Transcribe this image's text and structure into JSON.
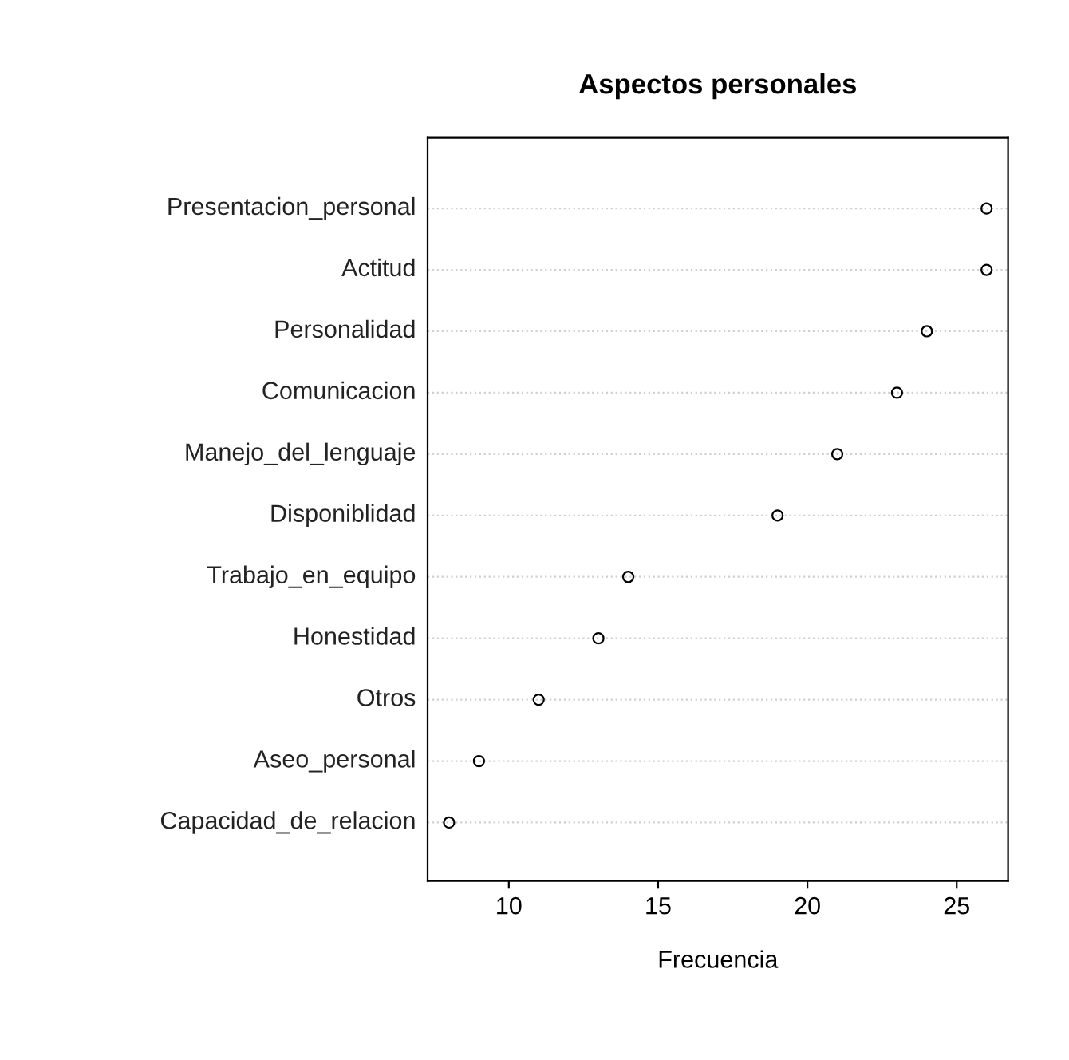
{
  "chart_data": {
    "type": "scatter",
    "orientation": "horizontal",
    "title": "Aspectos personales",
    "xlabel": "Frecuencia",
    "categories": [
      "Presentacion_personal",
      "Actitud",
      "Personalidad",
      "Comunicacion",
      "Manejo_del_lenguaje",
      "Disponiblidad",
      "Trabajo_en_equipo",
      "Honestidad",
      "Otros",
      "Aseo_personal",
      "Capacidad_de_relacion"
    ],
    "values": [
      26,
      26,
      24,
      23,
      21,
      19,
      14,
      13,
      11,
      9,
      8
    ],
    "color": "#000000",
    "marker": "circle",
    "grid": "y",
    "xlim": [
      7.28,
      26.72
    ],
    "xticks": [
      10,
      15,
      20,
      25
    ]
  }
}
